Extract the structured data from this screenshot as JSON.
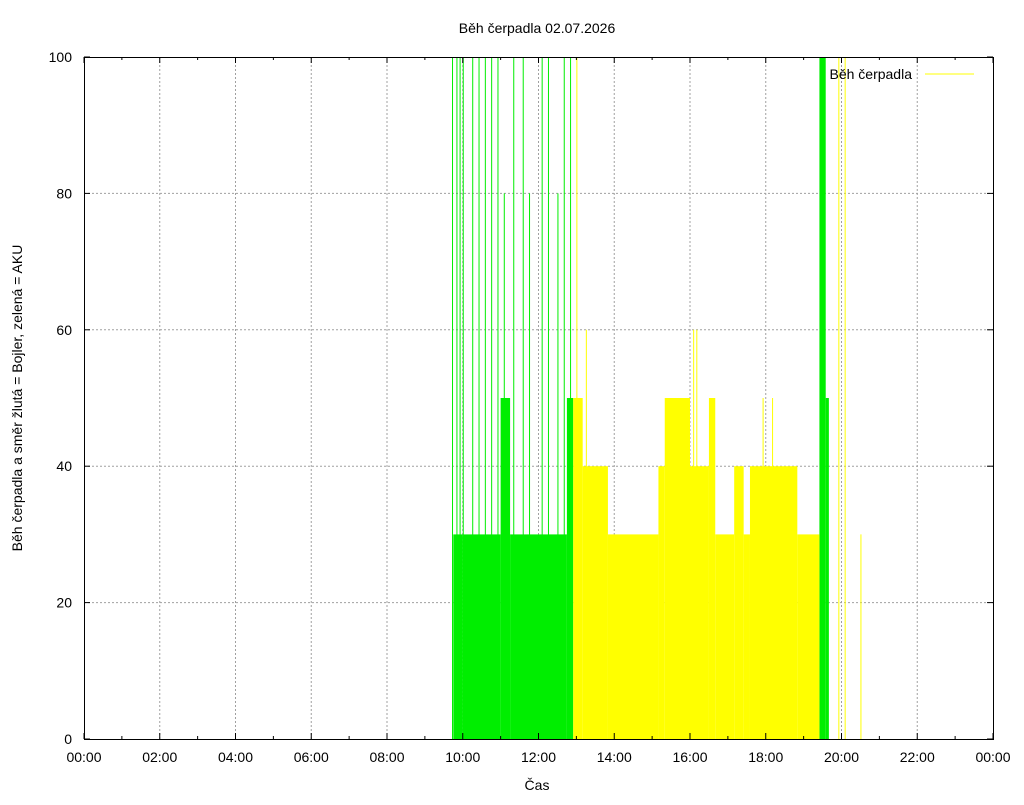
{
  "chart_data": {
    "type": "area",
    "title": "Běh čerpadla 02.07.2026",
    "xlabel": "Čas",
    "ylabel": "Běh čerpadla a směr žlutá = Bojler, zelená = AKU",
    "xlim": [
      "00:00",
      "24:00"
    ],
    "ylim": [
      0,
      100
    ],
    "x_ticks": [
      "00:00",
      "02:00",
      "04:00",
      "06:00",
      "08:00",
      "10:00",
      "12:00",
      "14:00",
      "16:00",
      "18:00",
      "20:00",
      "22:00",
      "00:00"
    ],
    "y_ticks": [
      "0",
      "20",
      "40",
      "60",
      "80",
      "100"
    ],
    "grid": true,
    "legend": {
      "position": "top-right",
      "entries": [
        {
          "label": "Běh čerpadla",
          "color": "#ffff00"
        }
      ]
    },
    "series": [
      {
        "color": "#00ee00",
        "note": "zelená = AKU",
        "segments": [
          {
            "from": "09:45",
            "to": "10:00",
            "value": 30
          },
          {
            "from": "10:00",
            "to": "11:00",
            "value": 30
          },
          {
            "from": "11:00",
            "to": "11:15",
            "value": 50
          },
          {
            "from": "11:15",
            "to": "12:00",
            "value": 30
          },
          {
            "from": "12:00",
            "to": "12:45",
            "value": 30
          },
          {
            "from": "12:45",
            "to": "12:55",
            "value": 50
          },
          {
            "from": "19:25",
            "to": "19:35",
            "value": 100
          },
          {
            "from": "19:35",
            "to": "19:40",
            "value": 50
          }
        ],
        "spikes": [
          {
            "x": "09:43",
            "value": 100
          },
          {
            "x": "09:50",
            "value": 100
          },
          {
            "x": "09:55",
            "value": 100
          },
          {
            "x": "10:00",
            "value": 100
          },
          {
            "x": "10:15",
            "value": 100
          },
          {
            "x": "10:25",
            "value": 100
          },
          {
            "x": "10:35",
            "value": 100
          },
          {
            "x": "10:45",
            "value": 100
          },
          {
            "x": "10:55",
            "value": 100
          },
          {
            "x": "11:05",
            "value": 80
          },
          {
            "x": "11:20",
            "value": 100
          },
          {
            "x": "11:35",
            "value": 100
          },
          {
            "x": "11:45",
            "value": 80
          },
          {
            "x": "12:05",
            "value": 100
          },
          {
            "x": "12:15",
            "value": 100
          },
          {
            "x": "12:30",
            "value": 80
          },
          {
            "x": "12:40",
            "value": 100
          },
          {
            "x": "12:50",
            "value": 100
          }
        ]
      },
      {
        "color": "#ffff00",
        "note": "žlutá = Bojler",
        "segments": [
          {
            "from": "12:55",
            "to": "13:10",
            "value": 50
          },
          {
            "from": "13:10",
            "to": "13:50",
            "value": 40
          },
          {
            "from": "13:50",
            "to": "15:10",
            "value": 30
          },
          {
            "from": "15:10",
            "to": "15:20",
            "value": 40
          },
          {
            "from": "15:20",
            "to": "16:00",
            "value": 50
          },
          {
            "from": "16:00",
            "to": "16:30",
            "value": 40
          },
          {
            "from": "16:30",
            "to": "16:40",
            "value": 50
          },
          {
            "from": "16:40",
            "to": "17:10",
            "value": 30
          },
          {
            "from": "17:10",
            "to": "17:25",
            "value": 40
          },
          {
            "from": "17:25",
            "to": "17:35",
            "value": 30
          },
          {
            "from": "17:35",
            "to": "18:50",
            "value": 40
          },
          {
            "from": "18:50",
            "to": "19:25",
            "value": 30
          }
        ],
        "spikes": [
          {
            "x": "13:00",
            "value": 100
          },
          {
            "x": "13:15",
            "value": 60
          },
          {
            "x": "16:05",
            "value": 60
          },
          {
            "x": "16:10",
            "value": 60
          },
          {
            "x": "17:55",
            "value": 50
          },
          {
            "x": "18:10",
            "value": 50
          },
          {
            "x": "19:55",
            "value": 100
          },
          {
            "x": "20:05",
            "value": 100
          },
          {
            "x": "20:30",
            "value": 30
          }
        ]
      }
    ]
  }
}
